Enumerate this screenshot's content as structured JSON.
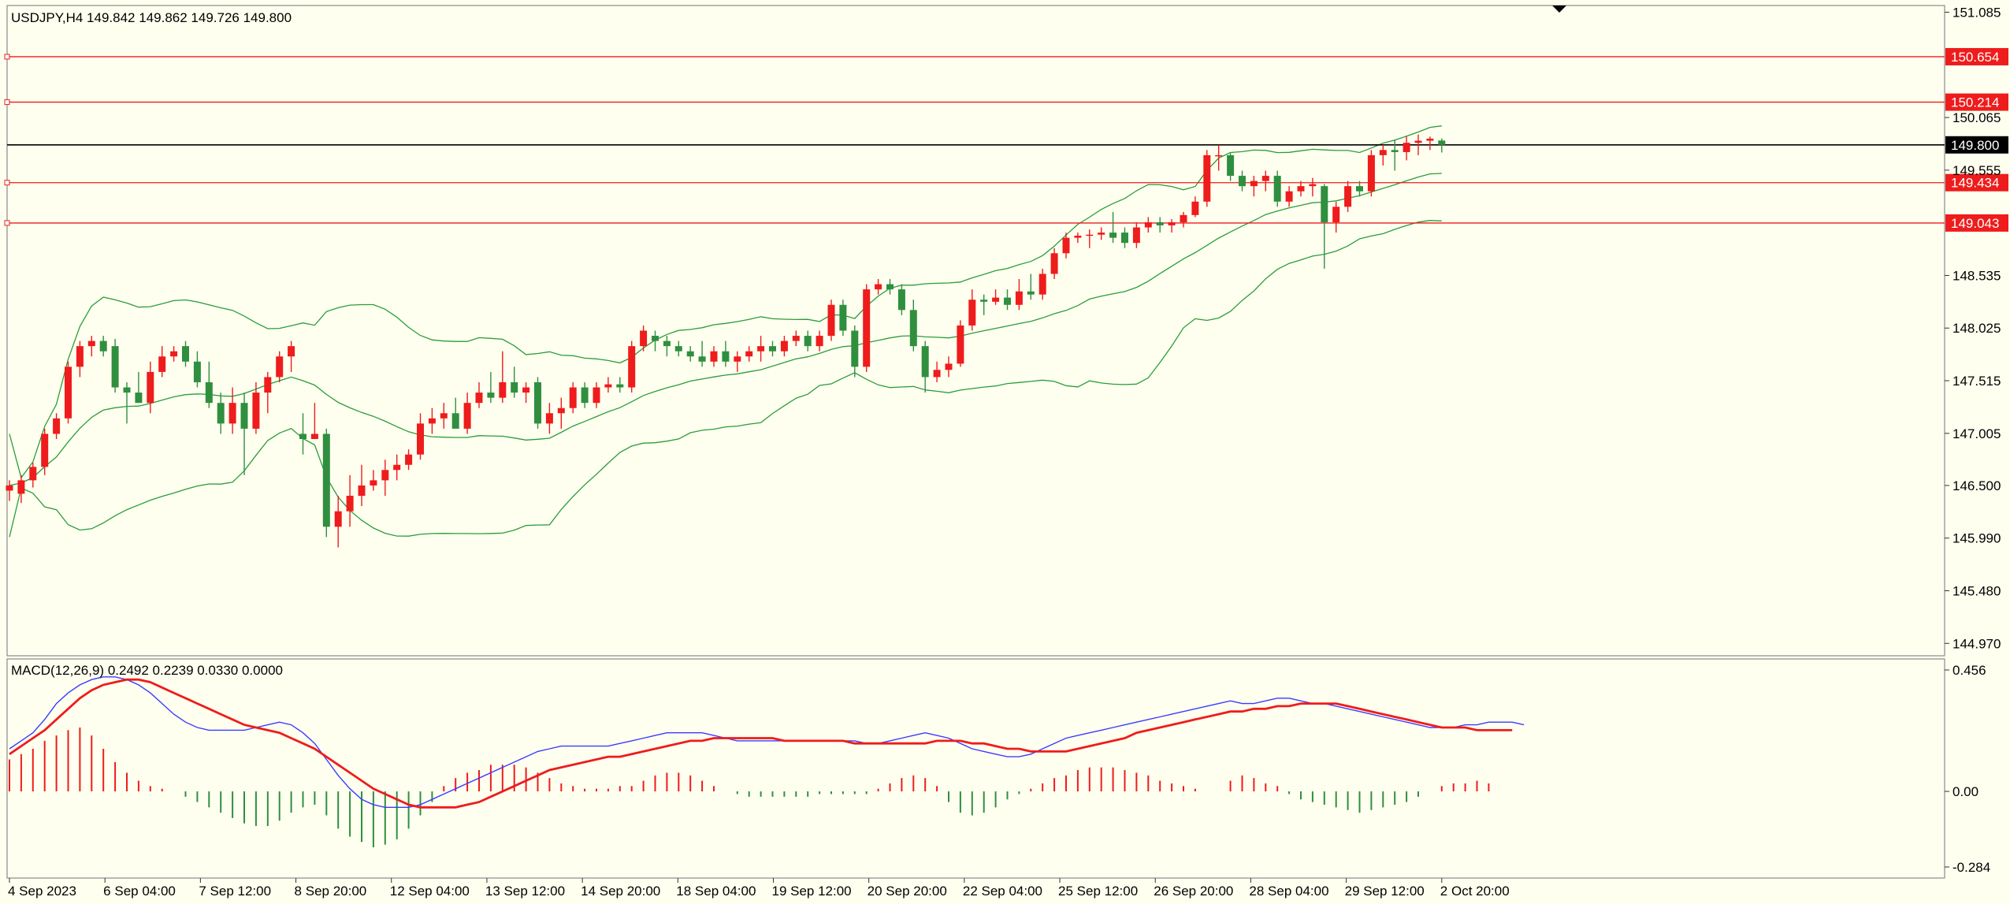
{
  "header": {
    "symbol_line": "USDJPY,H4  149.842 149.862 149.726 149.800"
  },
  "macd": {
    "label": "MACD(12,26,9) 0.2492 0.2239 0.0330 0.0000",
    "axis_ticks": [
      "0.456",
      "0.00",
      "-0.284"
    ]
  },
  "price_axis": {
    "ticks": [
      "151.085",
      "150.065",
      "149.555",
      "148.535",
      "148.025",
      "147.515",
      "147.005",
      "146.500",
      "145.990",
      "145.480",
      "144.970"
    ]
  },
  "levels": [
    {
      "value": "150.654",
      "color": "#ee1c1c"
    },
    {
      "value": "150.214",
      "color": "#ee1c1c"
    },
    {
      "value": "149.800",
      "color": "#000000",
      "current": true
    },
    {
      "value": "149.434",
      "color": "#ee1c1c"
    },
    {
      "value": "149.043",
      "color": "#ee1c1c"
    }
  ],
  "time_axis": {
    "labels": [
      "4 Sep 2023",
      "6 Sep 04:00",
      "7 Sep 12:00",
      "8 Sep 20:00",
      "12 Sep 04:00",
      "13 Sep 12:00",
      "14 Sep 20:00",
      "18 Sep 04:00",
      "19 Sep 12:00",
      "20 Sep 20:00",
      "22 Sep 04:00",
      "25 Sep 12:00",
      "26 Sep 20:00",
      "28 Sep 04:00",
      "29 Sep 12:00",
      "2 Oct 20:00"
    ]
  },
  "colors": {
    "background": "#fffff0",
    "bull": "#ee1c1c",
    "bear": "#2f8f3f",
    "bands": "#2a9d3a",
    "macd_line": "#3b3bff",
    "signal_line": "#ee1c1c",
    "hist_pos": "#ee1c1c",
    "hist_neg": "#2f8f3f"
  },
  "chart_data": {
    "type": "candlestick",
    "symbol": "USDJPY",
    "timeframe": "H4",
    "ylim": [
      144.85,
      151.15
    ],
    "candles": [
      {
        "o": 146.45,
        "h": 146.55,
        "l": 146.35,
        "c": 146.5
      },
      {
        "o": 146.42,
        "h": 146.6,
        "l": 146.33,
        "c": 146.55
      },
      {
        "o": 146.55,
        "h": 146.72,
        "l": 146.48,
        "c": 146.68
      },
      {
        "o": 146.68,
        "h": 147.05,
        "l": 146.6,
        "c": 147.0
      },
      {
        "o": 147.0,
        "h": 147.2,
        "l": 146.95,
        "c": 147.15
      },
      {
        "o": 147.15,
        "h": 147.7,
        "l": 147.1,
        "c": 147.65
      },
      {
        "o": 147.65,
        "h": 147.9,
        "l": 147.55,
        "c": 147.85
      },
      {
        "o": 147.85,
        "h": 147.95,
        "l": 147.75,
        "c": 147.9
      },
      {
        "o": 147.9,
        "h": 147.95,
        "l": 147.75,
        "c": 147.8
      },
      {
        "o": 147.85,
        "h": 147.92,
        "l": 147.4,
        "c": 147.45
      },
      {
        "o": 147.45,
        "h": 147.5,
        "l": 147.1,
        "c": 147.4
      },
      {
        "o": 147.4,
        "h": 147.6,
        "l": 147.3,
        "c": 147.3
      },
      {
        "o": 147.3,
        "h": 147.7,
        "l": 147.2,
        "c": 147.6
      },
      {
        "o": 147.6,
        "h": 147.85,
        "l": 147.55,
        "c": 147.75
      },
      {
        "o": 147.75,
        "h": 147.85,
        "l": 147.7,
        "c": 147.8
      },
      {
        "o": 147.85,
        "h": 147.9,
        "l": 147.65,
        "c": 147.7
      },
      {
        "o": 147.7,
        "h": 147.8,
        "l": 147.45,
        "c": 147.5
      },
      {
        "o": 147.5,
        "h": 147.7,
        "l": 147.25,
        "c": 147.3
      },
      {
        "o": 147.3,
        "h": 147.4,
        "l": 147.0,
        "c": 147.1
      },
      {
        "o": 147.1,
        "h": 147.45,
        "l": 147.0,
        "c": 147.3
      },
      {
        "o": 147.3,
        "h": 147.4,
        "l": 146.6,
        "c": 147.05
      },
      {
        "o": 147.05,
        "h": 147.5,
        "l": 147.0,
        "c": 147.4
      },
      {
        "o": 147.4,
        "h": 147.6,
        "l": 147.2,
        "c": 147.55
      },
      {
        "o": 147.55,
        "h": 147.8,
        "l": 147.5,
        "c": 147.75
      },
      {
        "o": 147.75,
        "h": 147.9,
        "l": 147.6,
        "c": 147.85
      },
      {
        "o": 147.0,
        "h": 147.2,
        "l": 146.8,
        "c": 146.95
      },
      {
        "o": 146.95,
        "h": 147.3,
        "l": 146.95,
        "c": 147.0
      },
      {
        "o": 147.0,
        "h": 147.05,
        "l": 146.0,
        "c": 146.1
      },
      {
        "o": 146.1,
        "h": 146.4,
        "l": 145.9,
        "c": 146.25
      },
      {
        "o": 146.25,
        "h": 146.6,
        "l": 146.1,
        "c": 146.4
      },
      {
        "o": 146.4,
        "h": 146.7,
        "l": 146.3,
        "c": 146.5
      },
      {
        "o": 146.5,
        "h": 146.65,
        "l": 146.45,
        "c": 146.55
      },
      {
        "o": 146.55,
        "h": 146.75,
        "l": 146.4,
        "c": 146.65
      },
      {
        "o": 146.65,
        "h": 146.8,
        "l": 146.55,
        "c": 146.7
      },
      {
        "o": 146.7,
        "h": 146.85,
        "l": 146.65,
        "c": 146.8
      },
      {
        "o": 146.8,
        "h": 147.2,
        "l": 146.75,
        "c": 147.1
      },
      {
        "o": 147.1,
        "h": 147.25,
        "l": 147.0,
        "c": 147.15
      },
      {
        "o": 147.15,
        "h": 147.3,
        "l": 147.05,
        "c": 147.2
      },
      {
        "o": 147.2,
        "h": 147.35,
        "l": 147.1,
        "c": 147.05
      },
      {
        "o": 147.05,
        "h": 147.4,
        "l": 147.0,
        "c": 147.3
      },
      {
        "o": 147.3,
        "h": 147.5,
        "l": 147.25,
        "c": 147.4
      },
      {
        "o": 147.4,
        "h": 147.6,
        "l": 147.3,
        "c": 147.35
      },
      {
        "o": 147.35,
        "h": 147.8,
        "l": 147.3,
        "c": 147.5
      },
      {
        "o": 147.5,
        "h": 147.65,
        "l": 147.35,
        "c": 147.4
      },
      {
        "o": 147.4,
        "h": 147.5,
        "l": 147.3,
        "c": 147.45
      },
      {
        "o": 147.5,
        "h": 147.55,
        "l": 147.05,
        "c": 147.1
      },
      {
        "o": 147.1,
        "h": 147.3,
        "l": 147.0,
        "c": 147.2
      },
      {
        "o": 147.2,
        "h": 147.35,
        "l": 147.05,
        "c": 147.25
      },
      {
        "o": 147.25,
        "h": 147.5,
        "l": 147.2,
        "c": 147.45
      },
      {
        "o": 147.45,
        "h": 147.5,
        "l": 147.25,
        "c": 147.3
      },
      {
        "o": 147.3,
        "h": 147.5,
        "l": 147.25,
        "c": 147.45
      },
      {
        "o": 147.45,
        "h": 147.55,
        "l": 147.4,
        "c": 147.48
      },
      {
        "o": 147.48,
        "h": 147.55,
        "l": 147.4,
        "c": 147.45
      },
      {
        "o": 147.45,
        "h": 147.9,
        "l": 147.4,
        "c": 147.85
      },
      {
        "o": 147.85,
        "h": 148.05,
        "l": 147.8,
        "c": 148.0
      },
      {
        "o": 147.95,
        "h": 148.0,
        "l": 147.8,
        "c": 147.9
      },
      {
        "o": 147.9,
        "h": 147.95,
        "l": 147.75,
        "c": 147.85
      },
      {
        "o": 147.85,
        "h": 147.9,
        "l": 147.75,
        "c": 147.8
      },
      {
        "o": 147.8,
        "h": 147.85,
        "l": 147.7,
        "c": 147.75
      },
      {
        "o": 147.75,
        "h": 147.9,
        "l": 147.65,
        "c": 147.7
      },
      {
        "o": 147.7,
        "h": 147.85,
        "l": 147.65,
        "c": 147.8
      },
      {
        "o": 147.8,
        "h": 147.9,
        "l": 147.65,
        "c": 147.7
      },
      {
        "o": 147.7,
        "h": 147.8,
        "l": 147.6,
        "c": 147.75
      },
      {
        "o": 147.75,
        "h": 147.85,
        "l": 147.7,
        "c": 147.8
      },
      {
        "o": 147.8,
        "h": 147.95,
        "l": 147.7,
        "c": 147.85
      },
      {
        "o": 147.85,
        "h": 147.9,
        "l": 147.75,
        "c": 147.8
      },
      {
        "o": 147.8,
        "h": 147.95,
        "l": 147.75,
        "c": 147.9
      },
      {
        "o": 147.9,
        "h": 148.0,
        "l": 147.85,
        "c": 147.95
      },
      {
        "o": 147.95,
        "h": 148.0,
        "l": 147.8,
        "c": 147.85
      },
      {
        "o": 147.85,
        "h": 148.0,
        "l": 147.8,
        "c": 147.95
      },
      {
        "o": 147.95,
        "h": 148.3,
        "l": 147.9,
        "c": 148.25
      },
      {
        "o": 148.25,
        "h": 148.3,
        "l": 147.95,
        "c": 148.0
      },
      {
        "o": 148.0,
        "h": 148.05,
        "l": 147.55,
        "c": 147.65
      },
      {
        "o": 147.65,
        "h": 148.45,
        "l": 147.6,
        "c": 148.4
      },
      {
        "o": 148.4,
        "h": 148.5,
        "l": 148.35,
        "c": 148.45
      },
      {
        "o": 148.45,
        "h": 148.5,
        "l": 148.35,
        "c": 148.4
      },
      {
        "o": 148.4,
        "h": 148.45,
        "l": 148.15,
        "c": 148.2
      },
      {
        "o": 148.2,
        "h": 148.3,
        "l": 147.8,
        "c": 147.85
      },
      {
        "o": 147.85,
        "h": 147.9,
        "l": 147.4,
        "c": 147.55
      },
      {
        "o": 147.55,
        "h": 147.7,
        "l": 147.5,
        "c": 147.62
      },
      {
        "o": 147.62,
        "h": 147.75,
        "l": 147.55,
        "c": 147.68
      },
      {
        "o": 147.68,
        "h": 148.1,
        "l": 147.65,
        "c": 148.05
      },
      {
        "o": 148.05,
        "h": 148.4,
        "l": 148.0,
        "c": 148.3
      },
      {
        "o": 148.3,
        "h": 148.35,
        "l": 148.15,
        "c": 148.28
      },
      {
        "o": 148.28,
        "h": 148.4,
        "l": 148.25,
        "c": 148.32
      },
      {
        "o": 148.32,
        "h": 148.4,
        "l": 148.2,
        "c": 148.25
      },
      {
        "o": 148.25,
        "h": 148.5,
        "l": 148.2,
        "c": 148.38
      },
      {
        "o": 148.38,
        "h": 148.55,
        "l": 148.3,
        "c": 148.35
      },
      {
        "o": 148.35,
        "h": 148.6,
        "l": 148.3,
        "c": 148.55
      },
      {
        "o": 148.55,
        "h": 148.8,
        "l": 148.5,
        "c": 148.75
      },
      {
        "o": 148.75,
        "h": 148.95,
        "l": 148.7,
        "c": 148.9
      },
      {
        "o": 148.9,
        "h": 148.95,
        "l": 148.85,
        "c": 148.92
      },
      {
        "o": 148.92,
        "h": 148.98,
        "l": 148.8,
        "c": 148.93
      },
      {
        "o": 148.93,
        "h": 149.0,
        "l": 148.88,
        "c": 148.95
      },
      {
        "o": 148.95,
        "h": 149.15,
        "l": 148.85,
        "c": 148.9
      },
      {
        "o": 148.95,
        "h": 149.0,
        "l": 148.8,
        "c": 148.85
      },
      {
        "o": 148.85,
        "h": 149.05,
        "l": 148.8,
        "c": 149.0
      },
      {
        "o": 149.0,
        "h": 149.1,
        "l": 148.95,
        "c": 149.05
      },
      {
        "o": 149.05,
        "h": 149.1,
        "l": 148.95,
        "c": 149.02
      },
      {
        "o": 149.02,
        "h": 149.08,
        "l": 148.95,
        "c": 149.05
      },
      {
        "o": 149.05,
        "h": 149.15,
        "l": 149.0,
        "c": 149.12
      },
      {
        "o": 149.12,
        "h": 149.3,
        "l": 149.1,
        "c": 149.25
      },
      {
        "o": 149.25,
        "h": 149.75,
        "l": 149.2,
        "c": 149.7
      },
      {
        "o": 149.7,
        "h": 149.8,
        "l": 149.55,
        "c": 149.7
      },
      {
        "o": 149.7,
        "h": 149.72,
        "l": 149.45,
        "c": 149.5
      },
      {
        "o": 149.5,
        "h": 149.55,
        "l": 149.35,
        "c": 149.4
      },
      {
        "o": 149.4,
        "h": 149.5,
        "l": 149.3,
        "c": 149.45
      },
      {
        "o": 149.45,
        "h": 149.55,
        "l": 149.35,
        "c": 149.5
      },
      {
        "o": 149.5,
        "h": 149.55,
        "l": 149.2,
        "c": 149.25
      },
      {
        "o": 149.25,
        "h": 149.4,
        "l": 149.2,
        "c": 149.35
      },
      {
        "o": 149.35,
        "h": 149.45,
        "l": 149.3,
        "c": 149.4
      },
      {
        "o": 149.4,
        "h": 149.48,
        "l": 149.3,
        "c": 149.42
      },
      {
        "o": 149.4,
        "h": 149.42,
        "l": 148.6,
        "c": 149.05
      },
      {
        "o": 149.05,
        "h": 149.25,
        "l": 148.95,
        "c": 149.2
      },
      {
        "o": 149.2,
        "h": 149.45,
        "l": 149.15,
        "c": 149.4
      },
      {
        "o": 149.4,
        "h": 149.45,
        "l": 149.3,
        "c": 149.35
      },
      {
        "o": 149.35,
        "h": 149.75,
        "l": 149.3,
        "c": 149.7
      },
      {
        "o": 149.7,
        "h": 149.8,
        "l": 149.6,
        "c": 149.75
      },
      {
        "o": 149.75,
        "h": 149.85,
        "l": 149.55,
        "c": 149.73
      },
      {
        "o": 149.73,
        "h": 149.88,
        "l": 149.65,
        "c": 149.82
      },
      {
        "o": 149.82,
        "h": 149.9,
        "l": 149.7,
        "c": 149.84
      },
      {
        "o": 149.84,
        "h": 149.88,
        "l": 149.75,
        "c": 149.86
      },
      {
        "o": 149.842,
        "h": 149.862,
        "l": 149.726,
        "c": 149.8
      }
    ],
    "macd": {
      "params": [
        12,
        26,
        9
      ],
      "ylim": [
        -0.284,
        0.456
      ],
      "main": [
        0.16,
        0.19,
        0.22,
        0.27,
        0.33,
        0.37,
        0.4,
        0.42,
        0.43,
        0.43,
        0.42,
        0.4,
        0.37,
        0.33,
        0.29,
        0.26,
        0.24,
        0.23,
        0.23,
        0.23,
        0.23,
        0.24,
        0.25,
        0.26,
        0.25,
        0.22,
        0.18,
        0.12,
        0.06,
        0.01,
        -0.03,
        -0.05,
        -0.06,
        -0.06,
        -0.06,
        -0.05,
        -0.03,
        -0.01,
        0.01,
        0.03,
        0.05,
        0.07,
        0.09,
        0.11,
        0.13,
        0.15,
        0.16,
        0.17,
        0.17,
        0.17,
        0.17,
        0.17,
        0.18,
        0.19,
        0.2,
        0.21,
        0.22,
        0.22,
        0.22,
        0.22,
        0.21,
        0.2,
        0.19,
        0.19,
        0.19,
        0.19,
        0.19,
        0.19,
        0.19,
        0.19,
        0.19,
        0.19,
        0.19,
        0.18,
        0.18,
        0.19,
        0.2,
        0.21,
        0.22,
        0.21,
        0.2,
        0.18,
        0.16,
        0.15,
        0.14,
        0.13,
        0.13,
        0.14,
        0.16,
        0.18,
        0.2,
        0.21,
        0.22,
        0.23,
        0.24,
        0.25,
        0.26,
        0.27,
        0.28,
        0.29,
        0.3,
        0.31,
        0.32,
        0.33,
        0.34,
        0.33,
        0.33,
        0.34,
        0.35,
        0.35,
        0.34,
        0.33,
        0.33,
        0.32,
        0.31,
        0.3,
        0.29,
        0.28,
        0.27,
        0.26,
        0.25,
        0.24,
        0.24,
        0.24,
        0.25,
        0.25,
        0.26,
        0.26,
        0.26,
        0.25
      ],
      "signal": [
        0.14,
        0.17,
        0.2,
        0.23,
        0.27,
        0.31,
        0.35,
        0.38,
        0.4,
        0.41,
        0.42,
        0.42,
        0.41,
        0.39,
        0.37,
        0.35,
        0.33,
        0.31,
        0.29,
        0.27,
        0.25,
        0.24,
        0.23,
        0.22,
        0.2,
        0.18,
        0.16,
        0.13,
        0.1,
        0.07,
        0.04,
        0.01,
        -0.01,
        -0.03,
        -0.05,
        -0.06,
        -0.06,
        -0.06,
        -0.06,
        -0.05,
        -0.04,
        -0.02,
        0.0,
        0.02,
        0.04,
        0.06,
        0.08,
        0.09,
        0.1,
        0.11,
        0.12,
        0.13,
        0.13,
        0.14,
        0.15,
        0.16,
        0.17,
        0.18,
        0.19,
        0.19,
        0.2,
        0.2,
        0.2,
        0.2,
        0.2,
        0.2,
        0.19,
        0.19,
        0.19,
        0.19,
        0.19,
        0.19,
        0.18,
        0.18,
        0.18,
        0.18,
        0.18,
        0.18,
        0.18,
        0.19,
        0.19,
        0.19,
        0.18,
        0.18,
        0.17,
        0.16,
        0.16,
        0.15,
        0.15,
        0.15,
        0.15,
        0.16,
        0.17,
        0.18,
        0.19,
        0.2,
        0.22,
        0.23,
        0.24,
        0.25,
        0.26,
        0.27,
        0.28,
        0.29,
        0.3,
        0.3,
        0.31,
        0.31,
        0.32,
        0.32,
        0.33,
        0.33,
        0.33,
        0.33,
        0.32,
        0.31,
        0.3,
        0.29,
        0.28,
        0.27,
        0.26,
        0.25,
        0.24,
        0.24,
        0.24,
        0.23,
        0.23,
        0.23,
        0.23
      ],
      "histogram": [
        0.12,
        0.14,
        0.16,
        0.19,
        0.21,
        0.23,
        0.24,
        0.21,
        0.16,
        0.11,
        0.07,
        0.04,
        0.02,
        0.01,
        0.0,
        -0.02,
        -0.04,
        -0.06,
        -0.08,
        -0.1,
        -0.12,
        -0.13,
        -0.13,
        -0.11,
        -0.08,
        -0.06,
        -0.05,
        -0.09,
        -0.14,
        -0.17,
        -0.19,
        -0.21,
        -0.2,
        -0.18,
        -0.14,
        -0.09,
        -0.04,
        0.02,
        0.05,
        0.07,
        0.08,
        0.1,
        0.1,
        0.1,
        0.09,
        0.07,
        0.05,
        0.03,
        0.02,
        0.01,
        0.01,
        0.01,
        0.02,
        0.02,
        0.04,
        0.06,
        0.07,
        0.07,
        0.06,
        0.04,
        0.02,
        0.0,
        -0.01,
        -0.02,
        -0.02,
        -0.02,
        -0.02,
        -0.02,
        -0.02,
        -0.01,
        -0.01,
        -0.01,
        -0.01,
        -0.01,
        0.01,
        0.03,
        0.05,
        0.06,
        0.05,
        0.02,
        -0.04,
        -0.08,
        -0.09,
        -0.08,
        -0.06,
        -0.03,
        -0.01,
        0.01,
        0.03,
        0.05,
        0.06,
        0.08,
        0.09,
        0.09,
        0.09,
        0.08,
        0.07,
        0.06,
        0.04,
        0.03,
        0.02,
        0.01,
        0.0,
        0.0,
        0.04,
        0.06,
        0.05,
        0.03,
        0.02,
        -0.01,
        -0.03,
        -0.04,
        -0.05,
        -0.06,
        -0.07,
        -0.08,
        -0.07,
        -0.06,
        -0.05,
        -0.04,
        -0.02,
        0.0,
        0.02,
        0.03,
        0.03,
        0.04,
        0.03
      ]
    }
  }
}
